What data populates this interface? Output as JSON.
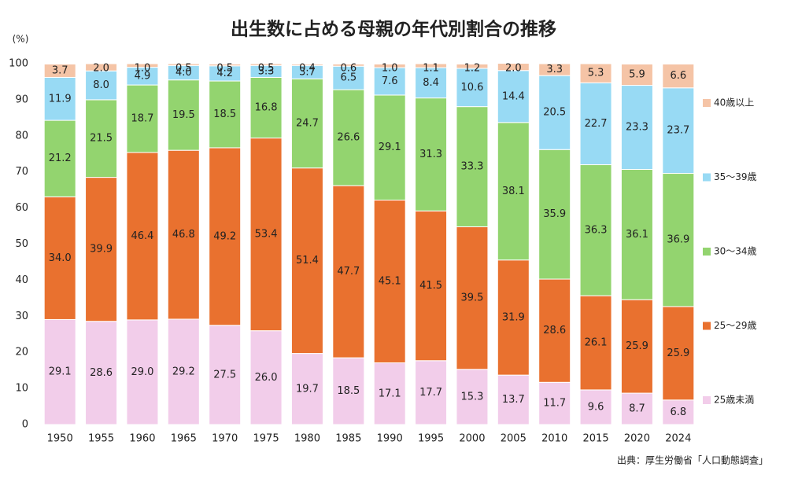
{
  "chart_data": {
    "type": "stacked_bar",
    "title": "出生数に占める母親の年代別割合の推移",
    "y_unit": "(%)",
    "source": "出典：厚生労働省「人口動態調査」",
    "categories": [
      "1950",
      "1955",
      "1960",
      "1965",
      "1970",
      "1975",
      "1980",
      "1985",
      "1990",
      "1995",
      "2000",
      "2005",
      "2010",
      "2015",
      "2020",
      "2024"
    ],
    "ylim": [
      0,
      100
    ],
    "yticks": [
      0,
      10,
      20,
      30,
      40,
      50,
      60,
      70,
      80,
      90,
      100
    ],
    "grid": false,
    "legend": "right",
    "series": [
      {
        "name": "25歳未満",
        "color": "#f2cdea",
        "values": [
          29.1,
          28.6,
          29.0,
          29.2,
          27.5,
          26.0,
          19.7,
          18.5,
          17.1,
          17.7,
          15.3,
          13.7,
          11.7,
          9.6,
          8.7,
          6.8
        ],
        "value_labels": [
          "29.1",
          "28.6",
          "29.0",
          "29.2",
          "27.5",
          "26.0",
          "19.7",
          "18.5",
          "17.1",
          "17.7",
          "15.3",
          "13.7",
          "11.7",
          "9.6",
          "8.7",
          "6.8"
        ]
      },
      {
        "name": "25～29歳",
        "color": "#e9712f",
        "values": [
          34.0,
          39.9,
          46.4,
          46.8,
          49.2,
          53.4,
          51.4,
          47.7,
          45.1,
          41.5,
          39.5,
          31.9,
          28.6,
          26.1,
          25.9,
          25.9
        ],
        "value_labels": [
          "34.0",
          "39.9",
          "46.4",
          "46.8",
          "49.2",
          "53.4",
          "51.4",
          "47.7",
          "45.1",
          "41.5",
          "39.5",
          "31.9",
          "28.6",
          "26.1",
          "25.9",
          "25.9"
        ]
      },
      {
        "name": "30～34歳",
        "color": "#93d46f",
        "values": [
          21.2,
          21.5,
          18.7,
          19.5,
          18.5,
          16.8,
          24.7,
          26.6,
          29.1,
          31.3,
          33.3,
          38.1,
          35.9,
          36.3,
          36.1,
          36.9
        ],
        "value_labels": [
          "21.2",
          "21.5",
          "18.7",
          "19.5",
          "18.5",
          "16.8",
          "24.7",
          "26.6",
          "29.1",
          "31.3",
          "33.3",
          "38.1",
          "35.9",
          "36.3",
          "36.1",
          "36.9"
        ]
      },
      {
        "name": "35～39歳",
        "color": "#98daf4",
        "values": [
          11.9,
          8.0,
          4.9,
          4.0,
          4.2,
          3.3,
          3.7,
          6.5,
          7.6,
          8.4,
          10.6,
          14.4,
          20.5,
          22.7,
          23.3,
          23.7
        ],
        "value_labels": [
          "11.9",
          "8.0",
          "4.9",
          "4.0",
          "4.2",
          "3.3",
          "3.7",
          "6.5",
          "7.6",
          "8.4",
          "10.6",
          "14.4",
          "20.5",
          "22.7",
          "23.3",
          "23.7"
        ]
      },
      {
        "name": "40歳以上",
        "color": "#f5c4a6",
        "values": [
          3.7,
          2.0,
          1.0,
          0.5,
          0.5,
          0.5,
          0.4,
          0.6,
          1.0,
          1.1,
          1.2,
          2.0,
          3.3,
          5.3,
          5.9,
          6.6
        ],
        "value_labels": [
          "3.7",
          "2.0",
          "1.0",
          "0.5",
          "0.5",
          "0.5",
          "0.4",
          "0.6",
          "1.0",
          "1.1",
          "1.2",
          "2.0",
          "3.3",
          "5.3",
          "5.9",
          "6.6"
        ]
      }
    ]
  }
}
